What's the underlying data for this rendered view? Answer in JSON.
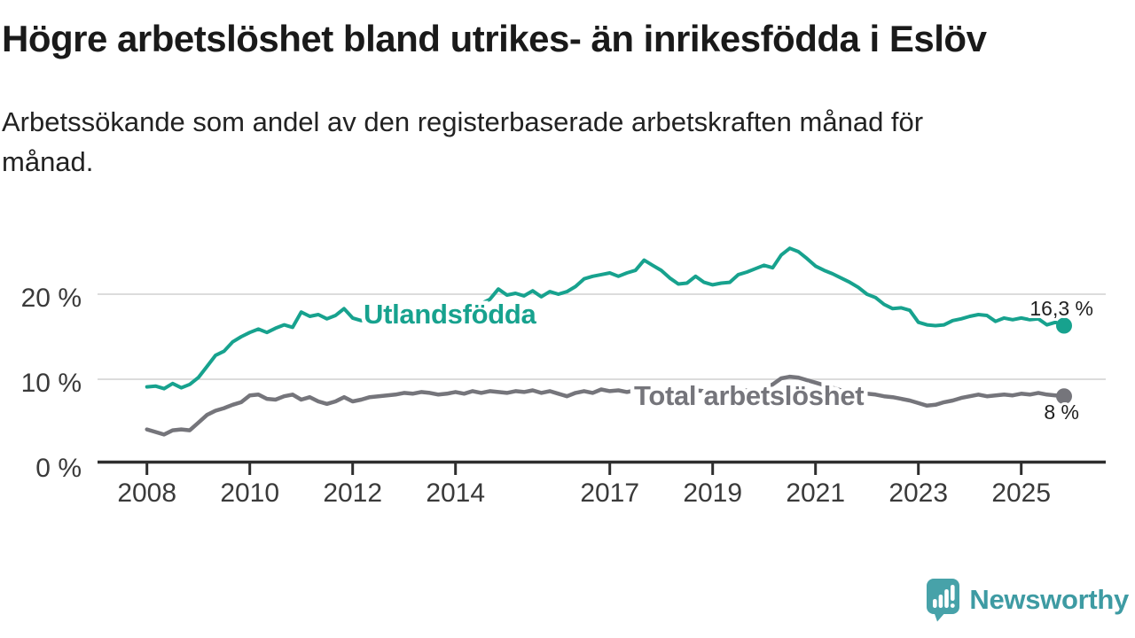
{
  "header": {
    "title": "Högre arbetslöshet bland utrikes- än inrikesfödda i Eslöv",
    "subtitle_lines": [
      "Arbetssökande som andel av den registerbaserade arbetskraften månad för",
      "månad."
    ]
  },
  "chart_data": {
    "type": "line",
    "title": "Högre arbetslöshet bland utrikes- än inrikesfödda i Eslöv",
    "subtitle": "Arbetssökande som andel av den registerbaserade arbetskraften månad för månad.",
    "xlabel": "",
    "ylabel": "",
    "x_unit": "year",
    "x_start": 2008.0,
    "x_step_years": 0.166667,
    "x_ticks": [
      2008,
      2010,
      2012,
      2014,
      2017,
      2019,
      2021,
      2023,
      2025
    ],
    "y_ticks": [
      {
        "value": 0,
        "label": "0 %"
      },
      {
        "value": 10,
        "label": "10 %"
      },
      {
        "value": 20,
        "label": "20 %"
      }
    ],
    "ylim": [
      0,
      27
    ],
    "grid": "horizontal",
    "legend": "inline-labels",
    "series": [
      {
        "name": "Utlandsfödda",
        "color": "#17a28e",
        "end_label": "16,3 %",
        "end_value": 16.3,
        "values": [
          9.1,
          9.2,
          8.9,
          9.5,
          9.0,
          9.4,
          10.2,
          11.5,
          12.8,
          13.3,
          14.4,
          15.0,
          15.5,
          15.9,
          15.5,
          16.0,
          16.4,
          16.1,
          17.9,
          17.4,
          17.6,
          17.1,
          17.5,
          18.3,
          17.2,
          16.9,
          17.2,
          16.8,
          17.0,
          17.2,
          17.3,
          17.2,
          17.5,
          17.4,
          17.7,
          17.9,
          18.1,
          18.3,
          18.6,
          18.9,
          19.4,
          20.6,
          19.9,
          20.1,
          19.8,
          20.4,
          19.7,
          20.3,
          20.0,
          20.3,
          20.9,
          21.8,
          22.1,
          22.3,
          22.5,
          22.1,
          22.5,
          22.8,
          24.0,
          23.4,
          22.8,
          21.9,
          21.2,
          21.3,
          22.1,
          21.4,
          21.1,
          21.3,
          21.4,
          22.3,
          22.6,
          23.0,
          23.4,
          23.1,
          24.6,
          25.4,
          25.0,
          24.2,
          23.3,
          22.8,
          22.4,
          21.9,
          21.4,
          20.8,
          20.0,
          19.6,
          18.8,
          18.3,
          18.4,
          18.1,
          16.7,
          16.4,
          16.3,
          16.4,
          16.9,
          17.1,
          17.4,
          17.6,
          17.5,
          16.8,
          17.2,
          17.0,
          17.2,
          17.0,
          17.1,
          16.4,
          16.7,
          16.3
        ]
      },
      {
        "name": "Total arbetslöshet",
        "color": "#75757b",
        "end_label": "8 %",
        "end_value": 8.0,
        "values": [
          4.1,
          3.8,
          3.5,
          4.0,
          4.1,
          4.0,
          4.9,
          5.8,
          6.3,
          6.6,
          7.0,
          7.3,
          8.1,
          8.2,
          7.7,
          7.6,
          8.0,
          8.2,
          7.6,
          7.9,
          7.4,
          7.1,
          7.4,
          7.9,
          7.4,
          7.6,
          7.9,
          8.0,
          8.1,
          8.2,
          8.4,
          8.3,
          8.5,
          8.4,
          8.2,
          8.3,
          8.5,
          8.3,
          8.6,
          8.4,
          8.6,
          8.5,
          8.4,
          8.6,
          8.5,
          8.7,
          8.4,
          8.6,
          8.3,
          8.0,
          8.4,
          8.6,
          8.4,
          8.8,
          8.6,
          8.7,
          8.5,
          8.7,
          8.8,
          8.6,
          8.5,
          8.6,
          8.4,
          8.5,
          8.7,
          8.6,
          8.5,
          8.4,
          8.6,
          8.5,
          8.7,
          8.8,
          8.9,
          9.4,
          10.1,
          10.3,
          10.2,
          9.9,
          9.6,
          9.3,
          9.0,
          8.7,
          8.5,
          8.4,
          8.3,
          8.2,
          8.0,
          7.9,
          7.7,
          7.5,
          7.2,
          6.9,
          7.0,
          7.3,
          7.5,
          7.8,
          8.0,
          8.2,
          8.0,
          8.1,
          8.2,
          8.1,
          8.3,
          8.2,
          8.4,
          8.2,
          8.1,
          8.0
        ]
      }
    ]
  },
  "branding": {
    "logo_text": "Newsworthy"
  },
  "colors": {
    "teal_series": "#17a28e",
    "gray_series": "#75757b",
    "axis": "#2e2e2e",
    "gridline": "#dcdcdc",
    "tick_label": "#3a3a3a",
    "value_label": "#1f1f1f",
    "logo_teal": "#3e9ba3",
    "logo_icon_teal": "#47a2a9"
  }
}
